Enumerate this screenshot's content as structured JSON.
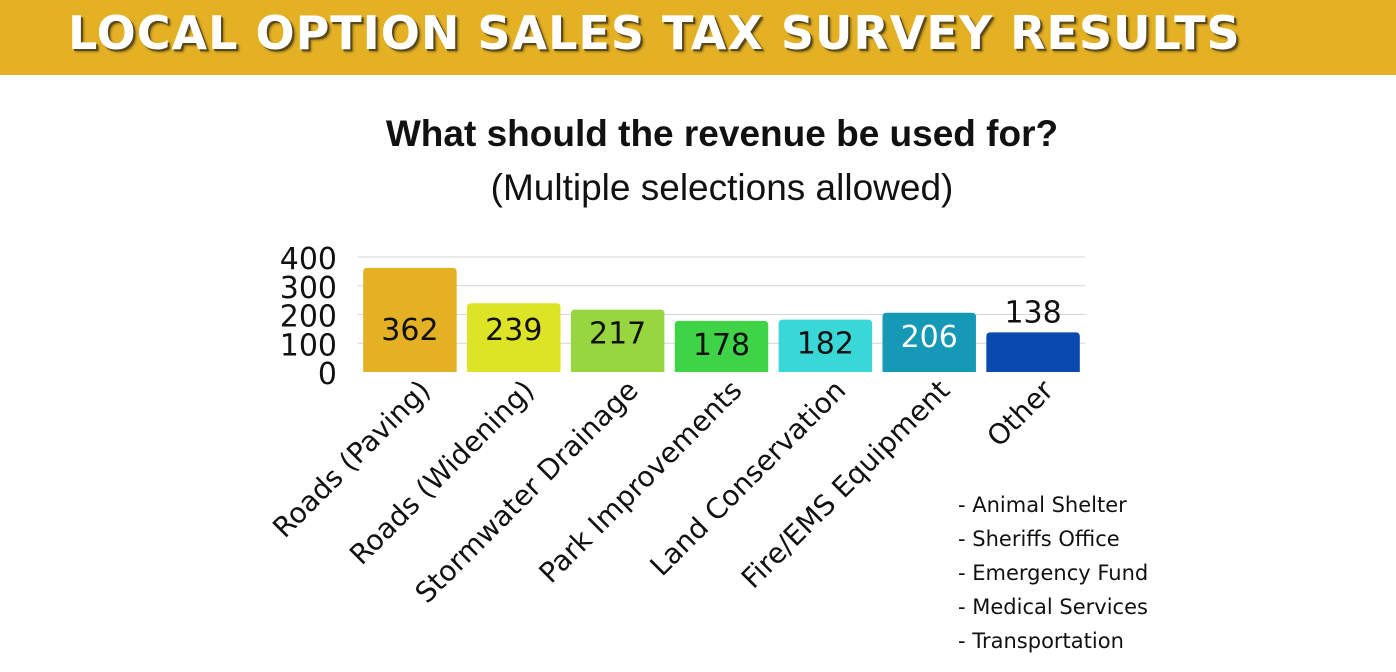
{
  "banner": {
    "title": "LOCAL OPTION SALES TAX SURVEY RESULTS"
  },
  "chart_data": {
    "type": "bar",
    "title": "What should the revenue be used for?",
    "subtitle": "(Multiple selections allowed)",
    "xlabel": "",
    "ylabel": "",
    "ylim": [
      0,
      400
    ],
    "yticks": [
      "0",
      "100",
      "200",
      "300",
      "400"
    ],
    "grid": true,
    "categories": [
      "Roads (Paving)",
      "Roads (Widening)",
      "Stormwater Drainage",
      "Park Improvements",
      "Land Conservation",
      "Fire/EMS Equipment",
      "Other"
    ],
    "values": [
      362,
      239,
      217,
      178,
      182,
      206,
      138
    ],
    "colors": [
      "#e4b024",
      "#dde426",
      "#97d63e",
      "#3fd448",
      "#3ad7d8",
      "#1599b6",
      "#0a49ad"
    ],
    "label_colors": [
      "#111111",
      "#111111",
      "#111111",
      "#111111",
      "#111111",
      "#ffffff",
      "#111111"
    ]
  },
  "other_notes": [
    "- Animal Shelter",
    "- Sheriffs Office",
    "- Emergency Fund",
    "- Medical Services",
    "- Transportation"
  ]
}
